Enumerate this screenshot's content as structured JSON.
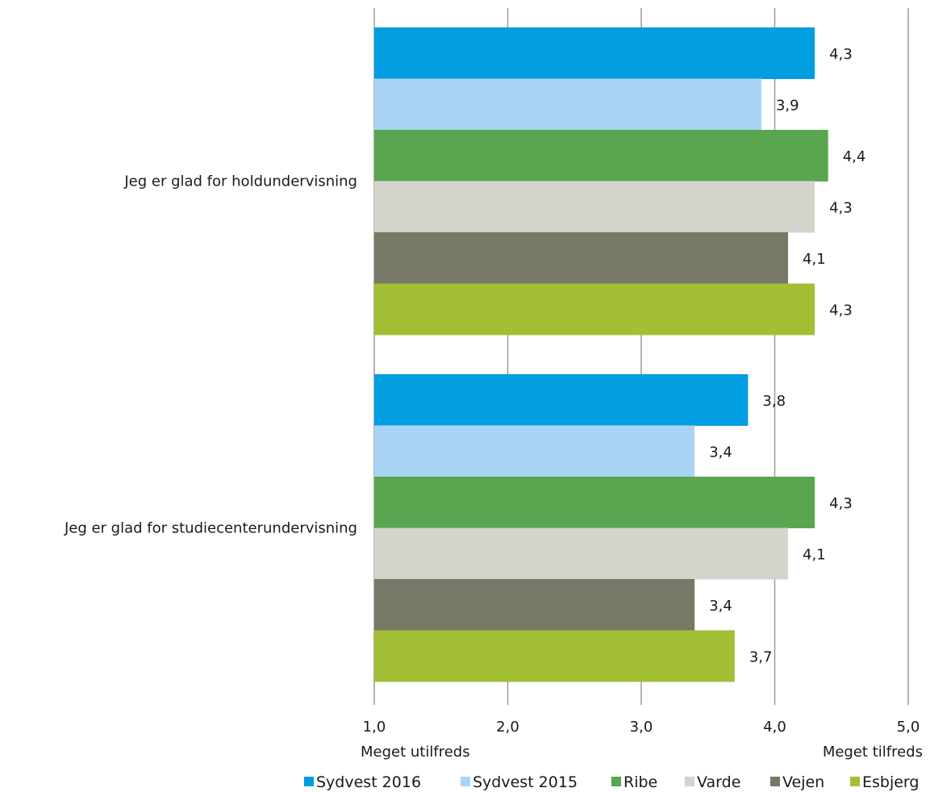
{
  "chart_data": {
    "type": "bar",
    "orientation": "horizontal",
    "categories": [
      "Jeg er glad for holdundervisning",
      "Jeg er glad for studiecenterundervisning"
    ],
    "series": [
      {
        "name": "Sydvest 2016",
        "color": "#009ee0",
        "values": [
          4.3,
          3.8
        ],
        "labels": [
          "4,3",
          "3,8"
        ]
      },
      {
        "name": "Sydvest 2015",
        "color": "#a9d4f5",
        "values": [
          3.9,
          3.4
        ],
        "labels": [
          "3,9",
          "3,4"
        ]
      },
      {
        "name": "Ribe",
        "color": "#5aa550",
        "values": [
          4.4,
          4.3
        ],
        "labels": [
          "4,4",
          "4,3"
        ]
      },
      {
        "name": "Varde",
        "color": "#d4d4cc",
        "values": [
          4.3,
          4.1
        ],
        "labels": [
          "4,3",
          "4,1"
        ]
      },
      {
        "name": "Vejen",
        "color": "#787866",
        "values": [
          4.1,
          3.4
        ],
        "labels": [
          "4,1",
          "3,4"
        ]
      },
      {
        "name": "Esbjerg",
        "color": "#a2bf36",
        "values": [
          4.3,
          3.7
        ],
        "labels": [
          "4,3",
          "3,7"
        ]
      }
    ],
    "xlim": [
      1.0,
      5.0
    ],
    "xticks": [
      1.0,
      2.0,
      3.0,
      4.0,
      5.0
    ],
    "xtick_labels": [
      "1,0",
      "2,0",
      "3,0",
      "4,0",
      "5,0"
    ],
    "axis_notes": {
      "left": "Meget utilfreds",
      "right": "Meget tilfreds"
    },
    "grid": true,
    "legend_position": "bottom"
  }
}
